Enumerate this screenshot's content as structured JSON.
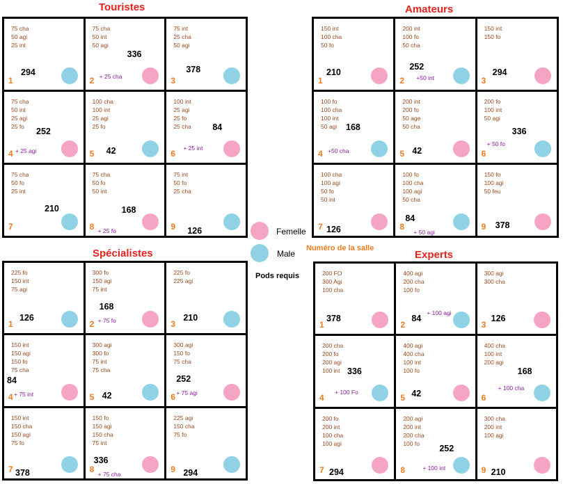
{
  "groups": [
    {
      "key": "touristes",
      "title": "Touristes",
      "cells": [
        {
          "reqs": [
            "75 cha",
            "50 agi",
            "25 int"
          ],
          "pods": "294",
          "bonus": "",
          "num": "1",
          "gender": "male"
        },
        {
          "reqs": [
            "75 cha",
            "50 int",
            "50 agi"
          ],
          "pods": "336",
          "bonus": "+ 25 cha",
          "num": "2",
          "gender": "female"
        },
        {
          "reqs": [
            "75 int",
            "25 cha",
            "50 agi"
          ],
          "pods": "378",
          "bonus": "",
          "num": "3",
          "gender": "male"
        },
        {
          "reqs": [
            "75 cha",
            "50 int",
            "25 agi",
            "25 fo"
          ],
          "pods": "252",
          "bonus": "+ 25 agi",
          "num": "4",
          "gender": "female"
        },
        {
          "reqs": [
            "100 cha",
            "100 int",
            "25 agi",
            "25 fo"
          ],
          "pods": "42",
          "bonus": "",
          "num": "5",
          "gender": "male"
        },
        {
          "reqs": [
            "100 int",
            "25 agi",
            "25 fo",
            "25 cha"
          ],
          "pods": "84",
          "bonus": "+ 25 int",
          "num": "6",
          "gender": "female"
        },
        {
          "reqs": [
            "75 cha",
            "50 fo",
            "25 int"
          ],
          "pods": "210",
          "bonus": "",
          "num": "7",
          "gender": "male"
        },
        {
          "reqs": [
            "75 cha",
            "50 fo",
            "50 int"
          ],
          "pods": "168",
          "bonus": "+ 25 fo",
          "num": "8",
          "gender": "female"
        },
        {
          "reqs": [
            "75 int",
            "50 fo",
            "25 cha"
          ],
          "pods": "126",
          "bonus": "",
          "num": "9",
          "gender": "male"
        }
      ]
    },
    {
      "key": "amateurs",
      "title": "Amateurs",
      "cells": [
        {
          "reqs": [
            "150 int",
            "100 cha",
            "50 fo"
          ],
          "pods": "210",
          "bonus": "",
          "num": "1",
          "gender": "female"
        },
        {
          "reqs": [
            "200 int",
            "100 fo",
            "50 cha"
          ],
          "pods": "252",
          "bonus": "+50 int",
          "num": "2",
          "gender": "male"
        },
        {
          "reqs": [
            "150 int",
            "150 fo"
          ],
          "pods": "294",
          "bonus": "",
          "num": "3",
          "gender": "female"
        },
        {
          "reqs": [
            "100 fo",
            "100 cha",
            "100 int",
            "50 agi"
          ],
          "pods": "168",
          "bonus": "+50 cha",
          "num": "4",
          "gender": "male"
        },
        {
          "reqs": [
            "200 int",
            "200 fo",
            "50 age",
            "50 cha"
          ],
          "pods": "42",
          "bonus": "",
          "num": "5",
          "gender": "female"
        },
        {
          "reqs": [
            "200 fo",
            "100 int",
            "50 agi"
          ],
          "pods": "336",
          "bonus": "+ 50 fo",
          "num": "6",
          "gender": "male"
        },
        {
          "reqs": [
            "100 cha",
            "100 agi",
            "50 fo",
            "50 int"
          ],
          "pods": "126",
          "bonus": "",
          "num": "7",
          "gender": "female"
        },
        {
          "reqs": [
            "100 fo",
            "100 cha",
            "100 agi",
            "50 cha"
          ],
          "pods": "84",
          "bonus": "+ 50 agi",
          "num": "8",
          "gender": "male"
        },
        {
          "reqs": [
            "150 fo",
            "100 agi",
            "50 feu"
          ],
          "pods": "378",
          "bonus": "",
          "num": "9",
          "gender": "female"
        }
      ]
    },
    {
      "key": "specialistes",
      "title": "Spécialistes",
      "cells": [
        {
          "reqs": [
            "225 fo",
            "150 int",
            "75 agi"
          ],
          "pods": "126",
          "bonus": "",
          "num": "1",
          "gender": "male"
        },
        {
          "reqs": [
            "300 fo",
            "150 agi",
            "75 int"
          ],
          "pods": "168",
          "bonus": "+ 75 fo",
          "num": "2",
          "gender": "female"
        },
        {
          "reqs": [
            "225 fo",
            "225 agi"
          ],
          "pods": "210",
          "bonus": "",
          "num": "3",
          "gender": "male"
        },
        {
          "reqs": [
            "150 int",
            "150 agi",
            "150 fo",
            "75 cha"
          ],
          "pods": "84",
          "bonus": "+ 75 int",
          "num": "4",
          "gender": "female"
        },
        {
          "reqs": [
            "300 agi",
            "300 fo",
            "75 int",
            "75 cha"
          ],
          "pods": "42",
          "bonus": "",
          "num": "5",
          "gender": "male"
        },
        {
          "reqs": [
            "300 agi",
            "150 fo",
            "75 cha"
          ],
          "pods": "252",
          "bonus": "+ 75 agi",
          "num": "6",
          "gender": "female"
        },
        {
          "reqs": [
            "150 int",
            "150 cha",
            "150 agi",
            "75 fo"
          ],
          "pods": "378",
          "bonus": "",
          "num": "7",
          "gender": "male"
        },
        {
          "reqs": [
            "150 fo",
            "150 agi",
            "150 cha",
            "75 int"
          ],
          "pods": "336",
          "bonus": "+ 75 cha",
          "num": "8",
          "gender": "female"
        },
        {
          "reqs": [
            "225 agi",
            "150 cha",
            "75 fo"
          ],
          "pods": "294",
          "bonus": "",
          "num": "9",
          "gender": "male"
        }
      ]
    },
    {
      "key": "experts",
      "title": "Experts",
      "cells": [
        {
          "reqs": [
            "200 FO",
            "300 Agi",
            "100 cha"
          ],
          "pods": "378",
          "bonus": "",
          "num": "1",
          "gender": "female"
        },
        {
          "reqs": [
            "400 agi",
            "200 cha",
            "100 fo"
          ],
          "pods": "84",
          "bonus": "+ 100 agi",
          "num": "2",
          "gender": "male"
        },
        {
          "reqs": [
            "300 agi",
            "300 cha"
          ],
          "pods": "126",
          "bonus": "",
          "num": "3",
          "gender": "female"
        },
        {
          "reqs": [
            "200 cha",
            "200 fo",
            "200 agi",
            "100 int"
          ],
          "pods": "336",
          "bonus": "+ 100 Fo",
          "num": "4",
          "gender": "male"
        },
        {
          "reqs": [
            "400 agi",
            "400 cha",
            "100 int",
            "100 fo"
          ],
          "pods": "42",
          "bonus": "",
          "num": "5",
          "gender": "female"
        },
        {
          "reqs": [
            "400 cha",
            "100 int",
            "200 agi"
          ],
          "pods": "168",
          "bonus": "+ 100 cha",
          "num": "6",
          "gender": "male"
        },
        {
          "reqs": [
            "200 fo",
            "200 int",
            "100 cha",
            "100 agi"
          ],
          "pods": "294",
          "bonus": "",
          "num": "7",
          "gender": "female"
        },
        {
          "reqs": [
            "200 agi",
            "200 int",
            "200 cha",
            "100 fo"
          ],
          "pods": "252",
          "bonus": "+ 100 int",
          "num": "8",
          "gender": "male"
        },
        {
          "reqs": [
            "300 cha",
            "200 int",
            "100 agi"
          ],
          "pods": "210",
          "bonus": "",
          "num": "9",
          "gender": "female"
        }
      ]
    }
  ],
  "legend": {
    "female_label": "Femelle",
    "male_label": "Male",
    "room_number_label": "Numéro de la salle",
    "pods_label": "Pods requis"
  },
  "colors": {
    "female": "#f6a4c4",
    "male": "#8fd2e6",
    "title": "#e8231f",
    "requirement": "#9a4a1e",
    "bonus": "#8b1a9e",
    "room_number": "#f07c1e"
  }
}
